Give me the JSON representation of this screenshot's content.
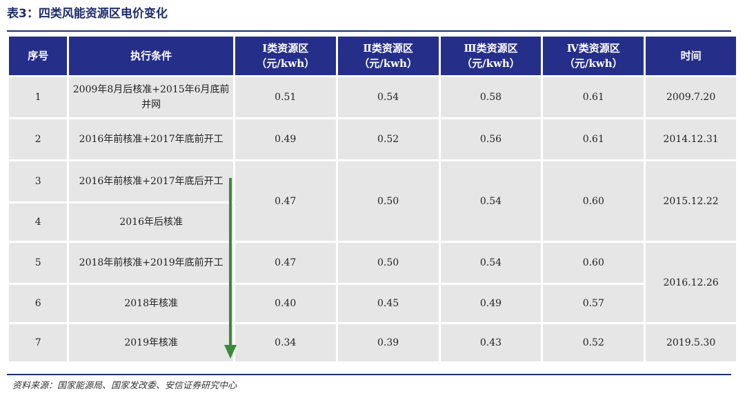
{
  "title": "表3：四类风能资源区电价变化",
  "headers": {
    "seq": "序号",
    "condition": "执行条件",
    "zone1_name": "Ⅰ类资源区",
    "zone1_unit": "（元/kwh）",
    "zone2_name": "Ⅱ类资源区",
    "zone2_unit": "（元/kwh）",
    "zone3_name": "Ⅲ类资源区",
    "zone3_unit": "（元/kwh）",
    "zone4_name": "Ⅳ类资源区",
    "zone4_unit": "（元/kwh）",
    "time": "时间"
  },
  "rows": [
    {
      "seq": "1",
      "cond": "2009年8月后核准+2015年6月底前并网",
      "z1": "0.51",
      "z2": "0.54",
      "z3": "0.58",
      "z4": "0.61",
      "time": "2009.7.20"
    },
    {
      "seq": "2",
      "cond": "2016年前核准+2017年底前开工",
      "z1": "0.49",
      "z2": "0.52",
      "z3": "0.56",
      "z4": "0.61",
      "time": "2014.12.31"
    },
    {
      "seq": "3",
      "cond": "2016年前核准+2017年底后开工",
      "z1": "0.47",
      "z2": "0.50",
      "z3": "0.54",
      "z4": "0.60",
      "time": "2015.12.22"
    },
    {
      "seq": "4",
      "cond": "2016年后核准"
    },
    {
      "seq": "5",
      "cond": "2018年前核准+2019年底前开工",
      "z1": "0.47",
      "z2": "0.50",
      "z3": "0.54",
      "z4": "0.60",
      "time": "2016.12.26"
    },
    {
      "seq": "6",
      "cond": "2018年核准",
      "z1": "0.40",
      "z2": "0.45",
      "z3": "0.49",
      "z4": "0.57"
    },
    {
      "seq": "7",
      "cond": "2019年核准",
      "z1": "0.34",
      "z2": "0.39",
      "z3": "0.43",
      "z4": "0.52",
      "time": "2019.5.30"
    }
  ],
  "source": "资料来源：国家能源局、国家发改委、安信证券研究中心",
  "colors": {
    "header_bg": "#252f8a",
    "cell_bg": "#e6e6e6",
    "arrow": "#3a8a3a"
  },
  "icons": {
    "trend_arrow": "down-arrow-icon"
  }
}
